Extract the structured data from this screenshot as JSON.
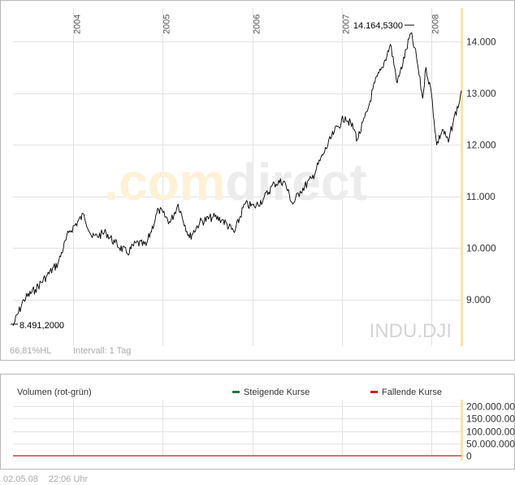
{
  "chart_data": [
    {
      "type": "line",
      "symbol": "INDU.DJI",
      "watermark": ".comdirect",
      "ylim": [
        8100,
        14650
      ],
      "x_ticks": [
        "2004",
        "2005",
        "2006",
        "2007",
        "2008"
      ],
      "y_ticks": [
        "14.000",
        "13.000",
        "12.000",
        "11.000",
        "10.000",
        "9.000"
      ],
      "y_tick_values": [
        14000,
        13000,
        12000,
        11000,
        10000,
        9000
      ],
      "annotations": {
        "high_label": "14.164,5300",
        "high_value": 14164.53,
        "low_label": "8.491,2000",
        "low_value": 8491.2
      },
      "footer_left": "66,81%HL",
      "footer_interval": "Intervall: 1 Tag",
      "series": [
        {
          "x": [
            "2003-05-02",
            "2003-06-15",
            "2003-08-01",
            "2003-09-15",
            "2003-11-01",
            "2003-12-15",
            "2004-02-15",
            "2004-03-20",
            "2004-05-15",
            "2004-06-20",
            "2004-08-10",
            "2004-09-15",
            "2004-10-25",
            "2004-12-15",
            "2005-02-01",
            "2005-03-05",
            "2005-04-20",
            "2005-06-01",
            "2005-07-25",
            "2005-09-01",
            "2005-10-20",
            "2005-12-01",
            "2006-01-10",
            "2006-02-15",
            "2006-04-01",
            "2006-05-10",
            "2006-06-15",
            "2006-07-15",
            "2006-09-01",
            "2006-10-15",
            "2006-12-01",
            "2007-01-15",
            "2007-02-20",
            "2007-03-05",
            "2007-04-15",
            "2007-05-15",
            "2007-06-15",
            "2007-07-18",
            "2007-08-15",
            "2007-10-09",
            "2007-11-01",
            "2007-11-26",
            "2007-12-10",
            "2008-01-01",
            "2008-01-22",
            "2008-02-15",
            "2008-03-10",
            "2008-04-01",
            "2008-04-25",
            "2008-05-02"
          ],
          "values": [
            8491.2,
            9000,
            9200,
            9450,
            9700,
            10300,
            10650,
            10200,
            10300,
            10100,
            9900,
            10100,
            10050,
            10750,
            10500,
            10850,
            10200,
            10500,
            10600,
            10550,
            10300,
            10850,
            10800,
            10950,
            11250,
            11300,
            10850,
            11100,
            11350,
            11800,
            12250,
            12550,
            12300,
            12100,
            12650,
            13200,
            13500,
            13950,
            13200,
            14164.53,
            13700,
            12900,
            13500,
            13000,
            12000,
            12300,
            12050,
            12500,
            12850,
            13050
          ]
        }
      ]
    },
    {
      "type": "bar",
      "title": "Volumen (rot-grün)",
      "legend": [
        "Steigende Kurse",
        "Fallende Kurse"
      ],
      "legend_colors": [
        "#1a7a3a",
        "#cc2222"
      ],
      "y_ticks": [
        "200.000.000",
        "150.000.000",
        "100.000.000",
        "50.000.000",
        "0"
      ],
      "ylim": [
        0,
        200000000
      ]
    }
  ],
  "footer": {
    "date": "02.05.08",
    "time": "22:06 Uhr"
  },
  "colors": {
    "line": "#000000",
    "grid": "#e3e3e3",
    "frame": "#b8b8b8",
    "accent_axis": "#fbe3a8"
  }
}
